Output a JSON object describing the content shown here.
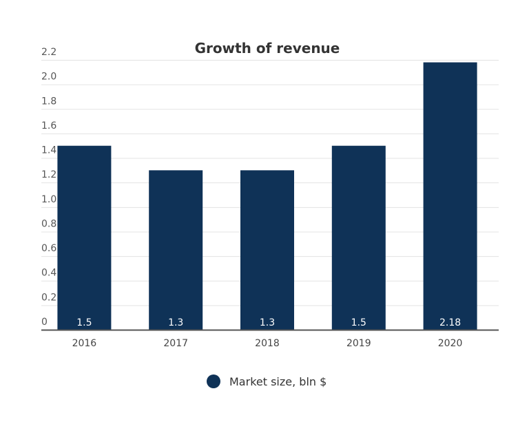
{
  "chart_data": {
    "type": "bar",
    "title": "Growth of revenue",
    "categories": [
      "2016",
      "2017",
      "2018",
      "2019",
      "2020"
    ],
    "series": [
      {
        "name": "Market size, bln $",
        "values": [
          1.5,
          1.3,
          1.3,
          1.5,
          2.18
        ]
      }
    ],
    "data_labels": [
      "1.5",
      "1.3",
      "1.3",
      "1.5",
      "2.18"
    ],
    "yticks": [
      "0",
      "0.2",
      "0.4",
      "0.6",
      "0.8",
      "1.0",
      "1.2",
      "1.4",
      "1.6",
      "1.8",
      "2.0",
      "2.2"
    ],
    "ylim": [
      0,
      2.2
    ],
    "grid": true,
    "legend_position": "bottom",
    "colors": {
      "bar": "#0f3257"
    }
  }
}
